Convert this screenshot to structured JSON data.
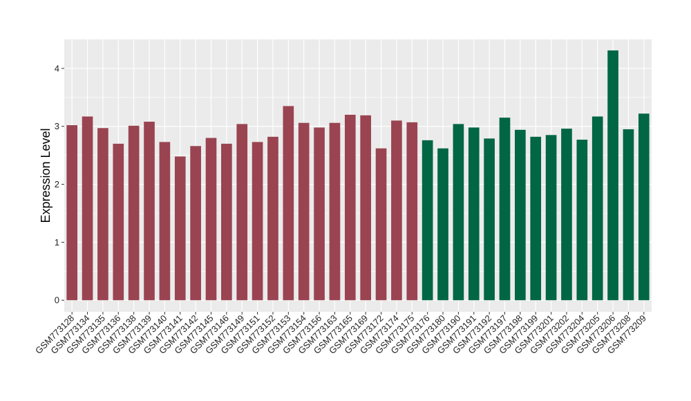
{
  "chart_data": {
    "type": "bar",
    "ylabel": "Expression Level",
    "xlabel": "",
    "ylim": [
      -0.2,
      4.5
    ],
    "yticks": [
      0,
      1,
      2,
      3,
      4
    ],
    "grid": true,
    "colors": {
      "group1": "#9A4451",
      "group2": "#006644",
      "panel": "#EBEBEB",
      "grid": "#FFFFFF"
    },
    "categories": [
      "GSM773128",
      "GSM773134",
      "GSM773135",
      "GSM773136",
      "GSM773138",
      "GSM773139",
      "GSM773140",
      "GSM773141",
      "GSM773142",
      "GSM773145",
      "GSM773146",
      "GSM773149",
      "GSM773151",
      "GSM773152",
      "GSM773153",
      "GSM773154",
      "GSM773156",
      "GSM773163",
      "GSM773165",
      "GSM773169",
      "GSM773172",
      "GSM773174",
      "GSM773175",
      "GSM773176",
      "GSM773180",
      "GSM773190",
      "GSM773191",
      "GSM773192",
      "GSM773197",
      "GSM773198",
      "GSM773199",
      "GSM773201",
      "GSM773202",
      "GSM773204",
      "GSM773205",
      "GSM773206",
      "GSM773208",
      "GSM773209"
    ],
    "values": [
      3.02,
      3.17,
      2.97,
      2.7,
      3.01,
      3.08,
      2.73,
      2.48,
      2.66,
      2.8,
      2.7,
      3.04,
      2.73,
      2.82,
      3.35,
      3.06,
      2.98,
      3.06,
      3.2,
      3.19,
      2.62,
      3.1,
      3.07,
      2.76,
      2.62,
      3.04,
      2.98,
      2.79,
      3.15,
      2.94,
      2.82,
      2.85,
      2.96,
      2.77,
      3.17,
      4.31,
      2.95,
      3.22
    ],
    "groups": [
      1,
      1,
      1,
      1,
      1,
      1,
      1,
      1,
      1,
      1,
      1,
      1,
      1,
      1,
      1,
      1,
      1,
      1,
      1,
      1,
      1,
      1,
      1,
      2,
      2,
      2,
      2,
      2,
      2,
      2,
      2,
      2,
      2,
      2,
      2,
      2,
      2,
      2
    ]
  }
}
